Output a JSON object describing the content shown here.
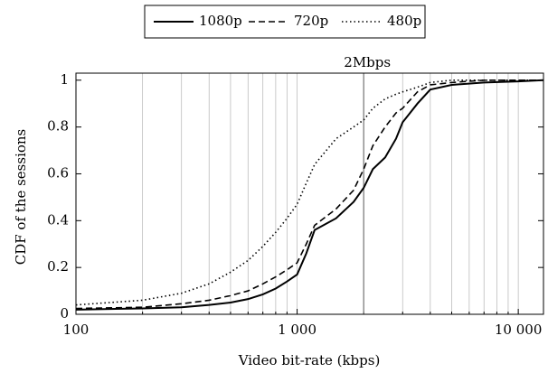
{
  "chart_data": {
    "type": "line",
    "x_scale": "log",
    "x": [
      100,
      200,
      300,
      400,
      500,
      600,
      700,
      800,
      900,
      1000,
      1100,
      1200,
      1500,
      1800,
      2000,
      2200,
      2500,
      2800,
      3000,
      3500,
      4000,
      5000,
      7000,
      10000,
      13000
    ],
    "series": [
      {
        "name": "1080p",
        "color": "#000000",
        "dash": "solid",
        "values": [
          0.02,
          0.025,
          0.03,
          0.04,
          0.05,
          0.065,
          0.085,
          0.11,
          0.14,
          0.17,
          0.26,
          0.36,
          0.41,
          0.48,
          0.54,
          0.62,
          0.67,
          0.75,
          0.82,
          0.9,
          0.96,
          0.98,
          0.99,
          0.995,
          1
        ]
      },
      {
        "name": "720p",
        "color": "#000000",
        "dash": "dashed",
        "values": [
          0.025,
          0.03,
          0.045,
          0.06,
          0.08,
          0.1,
          0.13,
          0.16,
          0.19,
          0.22,
          0.3,
          0.38,
          0.45,
          0.53,
          0.62,
          0.72,
          0.8,
          0.86,
          0.88,
          0.95,
          0.98,
          0.99,
          1,
          1,
          1
        ]
      },
      {
        "name": "480p",
        "color": "#000000",
        "dash": "dotted",
        "values": [
          0.04,
          0.06,
          0.09,
          0.13,
          0.18,
          0.23,
          0.29,
          0.35,
          0.41,
          0.47,
          0.56,
          0.64,
          0.75,
          0.8,
          0.83,
          0.88,
          0.92,
          0.94,
          0.95,
          0.97,
          0.99,
          1,
          1,
          1,
          1
        ]
      }
    ],
    "xlim": [
      100,
      13000
    ],
    "ylim": [
      0,
      1.03
    ],
    "xticks": [
      100,
      {
        "value": 1000,
        "label": "1 000"
      },
      {
        "value": 10000,
        "label": "10 000"
      }
    ],
    "x_minor_ticks": [
      200,
      300,
      400,
      500,
      600,
      700,
      800,
      900,
      2000,
      3000,
      4000,
      5000,
      6000,
      7000,
      8000,
      9000
    ],
    "yticks": [
      0,
      0.2,
      0.4,
      0.6,
      0.8,
      1
    ],
    "grid": true,
    "annotation": {
      "text": "2Mbps",
      "x": 2000
    },
    "xlabel": "Video bit-rate (kbps)",
    "ylabel": "CDF of the sessions",
    "legend_position": "top"
  }
}
